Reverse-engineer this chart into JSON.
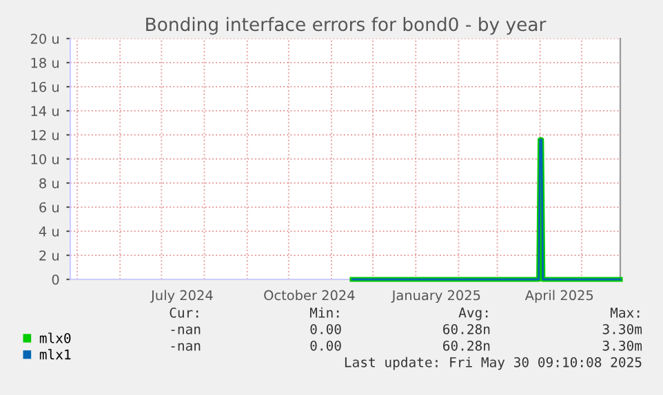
{
  "chart_data": {
    "type": "line",
    "title": "Bonding interface errors for bond0 - by year",
    "xlim": [
      "2024-04-26",
      "2025-05-29"
    ],
    "xticks": [
      {
        "value": "2024-05-01",
        "label": null
      },
      {
        "value": "2024-06-01",
        "label": null
      },
      {
        "value": "2024-07-01",
        "label": null
      },
      {
        "value": "2024-07-16",
        "label": "July 2024"
      },
      {
        "value": "2024-08-01",
        "label": null
      },
      {
        "value": "2024-09-01",
        "label": null
      },
      {
        "value": "2024-10-01",
        "label": null
      },
      {
        "value": "2024-10-16",
        "label": "October 2024"
      },
      {
        "value": "2024-11-01",
        "label": null
      },
      {
        "value": "2024-12-01",
        "label": null
      },
      {
        "value": "2025-01-01",
        "label": null
      },
      {
        "value": "2025-01-16",
        "label": "January 2025"
      },
      {
        "value": "2025-02-01",
        "label": null
      },
      {
        "value": "2025-03-01",
        "label": null
      },
      {
        "value": "2025-04-01",
        "label": null
      },
      {
        "value": "2025-04-15",
        "label": "April 2025"
      },
      {
        "value": "2025-05-01",
        "label": null
      }
    ],
    "ylim": [
      0,
      20
    ],
    "yticks": [
      0,
      {
        "value": 2,
        "label": "2 u"
      },
      {
        "value": 4,
        "label": "4 u"
      },
      {
        "value": 6,
        "label": "6 u"
      },
      {
        "value": 8,
        "label": "8 u"
      },
      {
        "value": 10,
        "label": "10 u"
      },
      {
        "value": 12,
        "label": "12 u"
      },
      {
        "value": 14,
        "label": "14 u"
      },
      {
        "value": 16,
        "label": "16 u"
      },
      {
        "value": 18,
        "label": "18 u"
      },
      {
        "value": 20,
        "label": "20 u"
      }
    ],
    "grid": true,
    "legend": "bottom",
    "line_style": "solid",
    "marker": "none",
    "series": [
      {
        "name": "mlx0",
        "color": "#00cc00",
        "x": [
          "2024-11-16",
          "2025-03-31",
          "2025-04-01",
          "2025-04-02",
          "2025-04-03",
          "2025-05-29"
        ],
        "values": [
          0,
          0,
          11.6,
          11.6,
          0,
          0
        ]
      },
      {
        "name": "mlx1",
        "color": "#0066b3",
        "x": [
          "2024-11-16",
          "2025-03-31",
          "2025-04-01",
          "2025-04-02",
          "2025-04-03",
          "2025-05-29"
        ],
        "values": [
          0,
          0,
          11.6,
          11.6,
          0,
          0
        ]
      }
    ],
    "annotations": [
      "Cur:",
      "Min:",
      "Avg:",
      "Max:",
      "-nan",
      "0.00",
      "60.28n",
      "3.30m",
      "-nan",
      "0.00",
      "60.28n",
      "3.30m",
      "Last update: Fri May 30 09:10:08 2025"
    ]
  }
}
